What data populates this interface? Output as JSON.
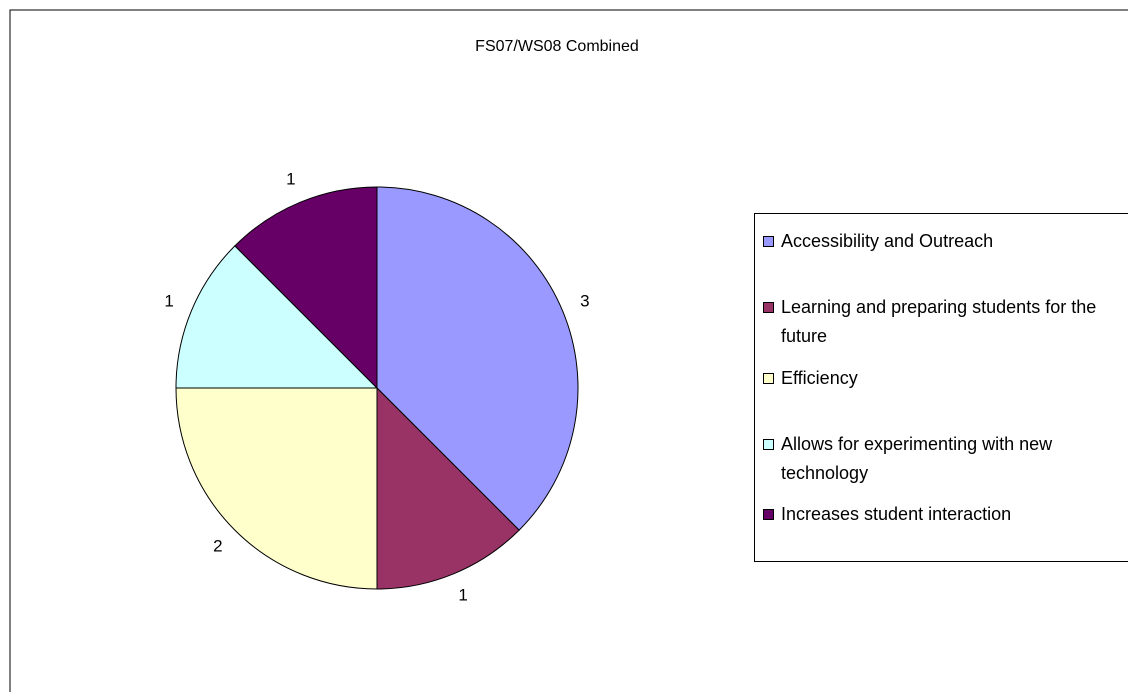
{
  "chart_data": {
    "type": "pie",
    "title": "FS07/WS08 Combined",
    "categories": [
      "Accessibility and Outreach",
      "Learning and preparing students for the future",
      "Efficiency",
      "Allows for experimenting with new technology",
      "Increases student interaction"
    ],
    "values": [
      3,
      1,
      2,
      1,
      1
    ],
    "colors": [
      "#9999ff",
      "#993366",
      "#ffffcc",
      "#ccffff",
      "#660066"
    ],
    "legend": "right"
  }
}
